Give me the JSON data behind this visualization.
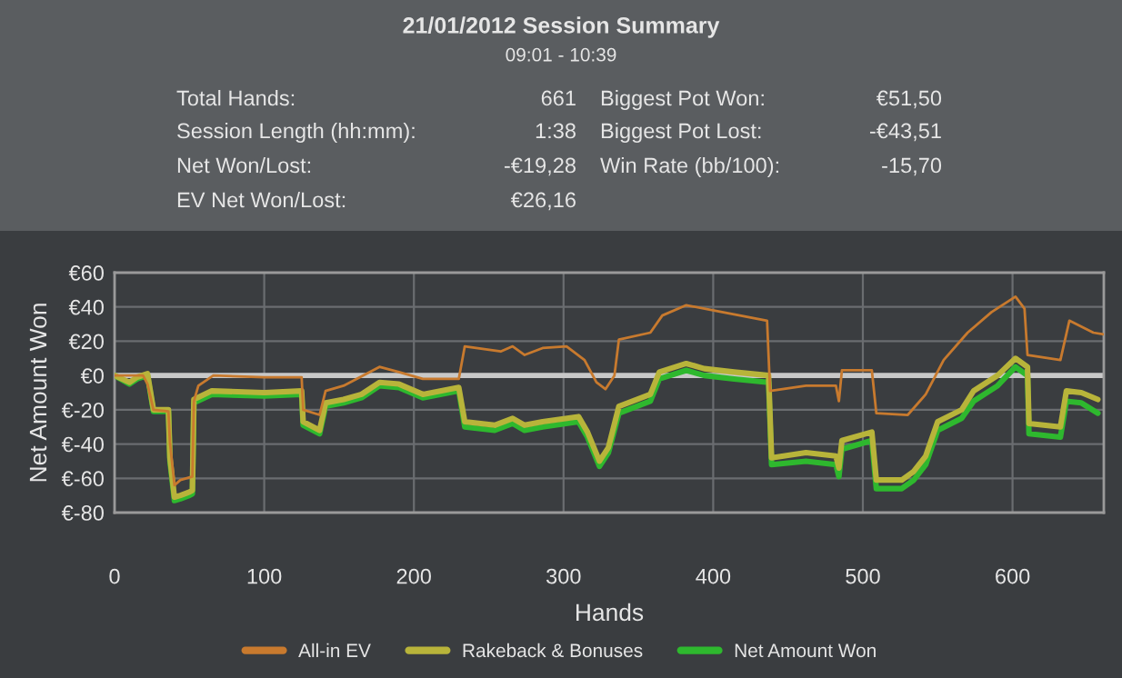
{
  "chart_data": {
    "type": "line",
    "title": "21/01/2012 Session Summary",
    "subtitle": "09:01 - 10:39",
    "annotations": [
      "Total Hands:",
      "661",
      "Session Length (hh:mm):",
      "1:38",
      "Net Won/Lost:",
      "-€19,28",
      "EV Net Won/Lost:",
      "€26,16",
      "Biggest Pot Won:",
      "€51,50",
      "Biggest Pot Lost:",
      "-€43,51",
      "Win Rate (bb/100):",
      "-15,70"
    ],
    "xlabel": "Hands",
    "ylabel": "Net Amount Won",
    "xlim": [
      0,
      661
    ],
    "xticks": [
      0,
      100,
      200,
      300,
      400,
      500,
      600
    ],
    "ylim": [
      -80,
      60
    ],
    "yticks": [
      {
        "value": -80,
        "label": "€-80"
      },
      {
        "value": -60,
        "label": "€-60"
      },
      {
        "value": -40,
        "label": "€-40"
      },
      {
        "value": -20,
        "label": "€-20"
      },
      {
        "value": 0,
        "label": "€0"
      },
      {
        "value": 20,
        "label": "€20"
      },
      {
        "value": 40,
        "label": "€40"
      },
      {
        "value": 60,
        "label": "€60"
      }
    ],
    "grid": true,
    "legend": "bottom",
    "ref_lines": [
      {
        "axis": "y",
        "value": 0,
        "color": "#c8c8c8"
      }
    ],
    "series": [
      {
        "name": "All-in EV",
        "color": "#c87a2e",
        "x": [
          0,
          19,
          22,
          26,
          36,
          37,
          40,
          44,
          52,
          53,
          56,
          66,
          100,
          125,
          126,
          137,
          141,
          153,
          177,
          190,
          206,
          230,
          234,
          258,
          266,
          274,
          286,
          302,
          314,
          322,
          328,
          334,
          337,
          358,
          366,
          382,
          406,
          436,
          438,
          462,
          482,
          484,
          486,
          506,
          509,
          530,
          542,
          554,
          570,
          586,
          602,
          608,
          610,
          632,
          638,
          654,
          661
        ],
        "values": [
          0,
          0,
          -5,
          -20,
          -21,
          -39,
          -64,
          -61,
          -59,
          -15,
          -6,
          0,
          -1,
          -1,
          -20,
          -23,
          -9,
          -6,
          5,
          2,
          -2,
          -2,
          17,
          14,
          17,
          12,
          16,
          17,
          9,
          -4,
          -8,
          0,
          21,
          25,
          35,
          41,
          37,
          32,
          -9,
          -6,
          -6,
          -15,
          3,
          3,
          -22,
          -23,
          -11,
          9,
          25,
          37,
          46,
          39,
          12,
          9,
          32,
          25,
          24
        ]
      },
      {
        "name": "Rakeback & Bonuses",
        "color": "#b8b43a",
        "x": [
          0,
          10,
          15,
          22,
          26,
          36,
          37,
          40,
          44,
          50,
          52,
          53,
          65,
          100,
          125,
          126,
          137,
          141,
          153,
          165,
          177,
          190,
          206,
          230,
          234,
          254,
          266,
          274,
          286,
          310,
          316,
          324,
          330,
          337,
          358,
          364,
          382,
          394,
          414,
          437,
          439,
          462,
          482,
          484,
          486,
          506,
          509,
          526,
          534,
          542,
          550,
          566,
          574,
          590,
          602,
          610,
          611,
          632,
          636,
          646,
          657
        ],
        "values": [
          0,
          -4,
          -1,
          1,
          -20,
          -20,
          -48,
          -71,
          -70,
          -68,
          -67,
          -14,
          -9,
          -10,
          -9,
          -27,
          -32,
          -16,
          -14,
          -11,
          -4,
          -5,
          -11,
          -7,
          -27,
          -29,
          -25,
          -29,
          -27,
          -24,
          -33,
          -50,
          -42,
          -18,
          -11,
          2,
          7,
          4,
          2,
          0,
          -48,
          -45,
          -47,
          -54,
          -38,
          -33,
          -61,
          -61,
          -56,
          -47,
          -27,
          -20,
          -9,
          0,
          10,
          5,
          -28,
          -30,
          -9,
          -10,
          -14
        ]
      },
      {
        "name": "Net Amount Won",
        "color": "#2eb82e",
        "x": [
          0,
          10,
          15,
          22,
          26,
          36,
          37,
          40,
          44,
          50,
          52,
          53,
          65,
          100,
          125,
          126,
          137,
          141,
          153,
          165,
          177,
          190,
          206,
          230,
          234,
          254,
          266,
          274,
          286,
          310,
          316,
          324,
          330,
          337,
          358,
          364,
          382,
          394,
          414,
          437,
          439,
          462,
          482,
          484,
          486,
          506,
          509,
          526,
          534,
          542,
          550,
          566,
          574,
          590,
          602,
          610,
          611,
          632,
          636,
          646,
          657
        ],
        "values": [
          0,
          -5,
          -2,
          0,
          -21,
          -21,
          -50,
          -73,
          -72,
          -70,
          -69,
          -16,
          -11,
          -12,
          -11,
          -29,
          -34,
          -18,
          -16,
          -13,
          -6,
          -7,
          -13,
          -9,
          -30,
          -32,
          -28,
          -32,
          -30,
          -27,
          -36,
          -53,
          -45,
          -22,
          -15,
          -2,
          3,
          0,
          -2,
          -4,
          -52,
          -50,
          -52,
          -59,
          -43,
          -38,
          -66,
          -66,
          -61,
          -52,
          -32,
          -25,
          -15,
          -6,
          5,
          0,
          -34,
          -36,
          -15,
          -16,
          -22
        ]
      }
    ]
  }
}
